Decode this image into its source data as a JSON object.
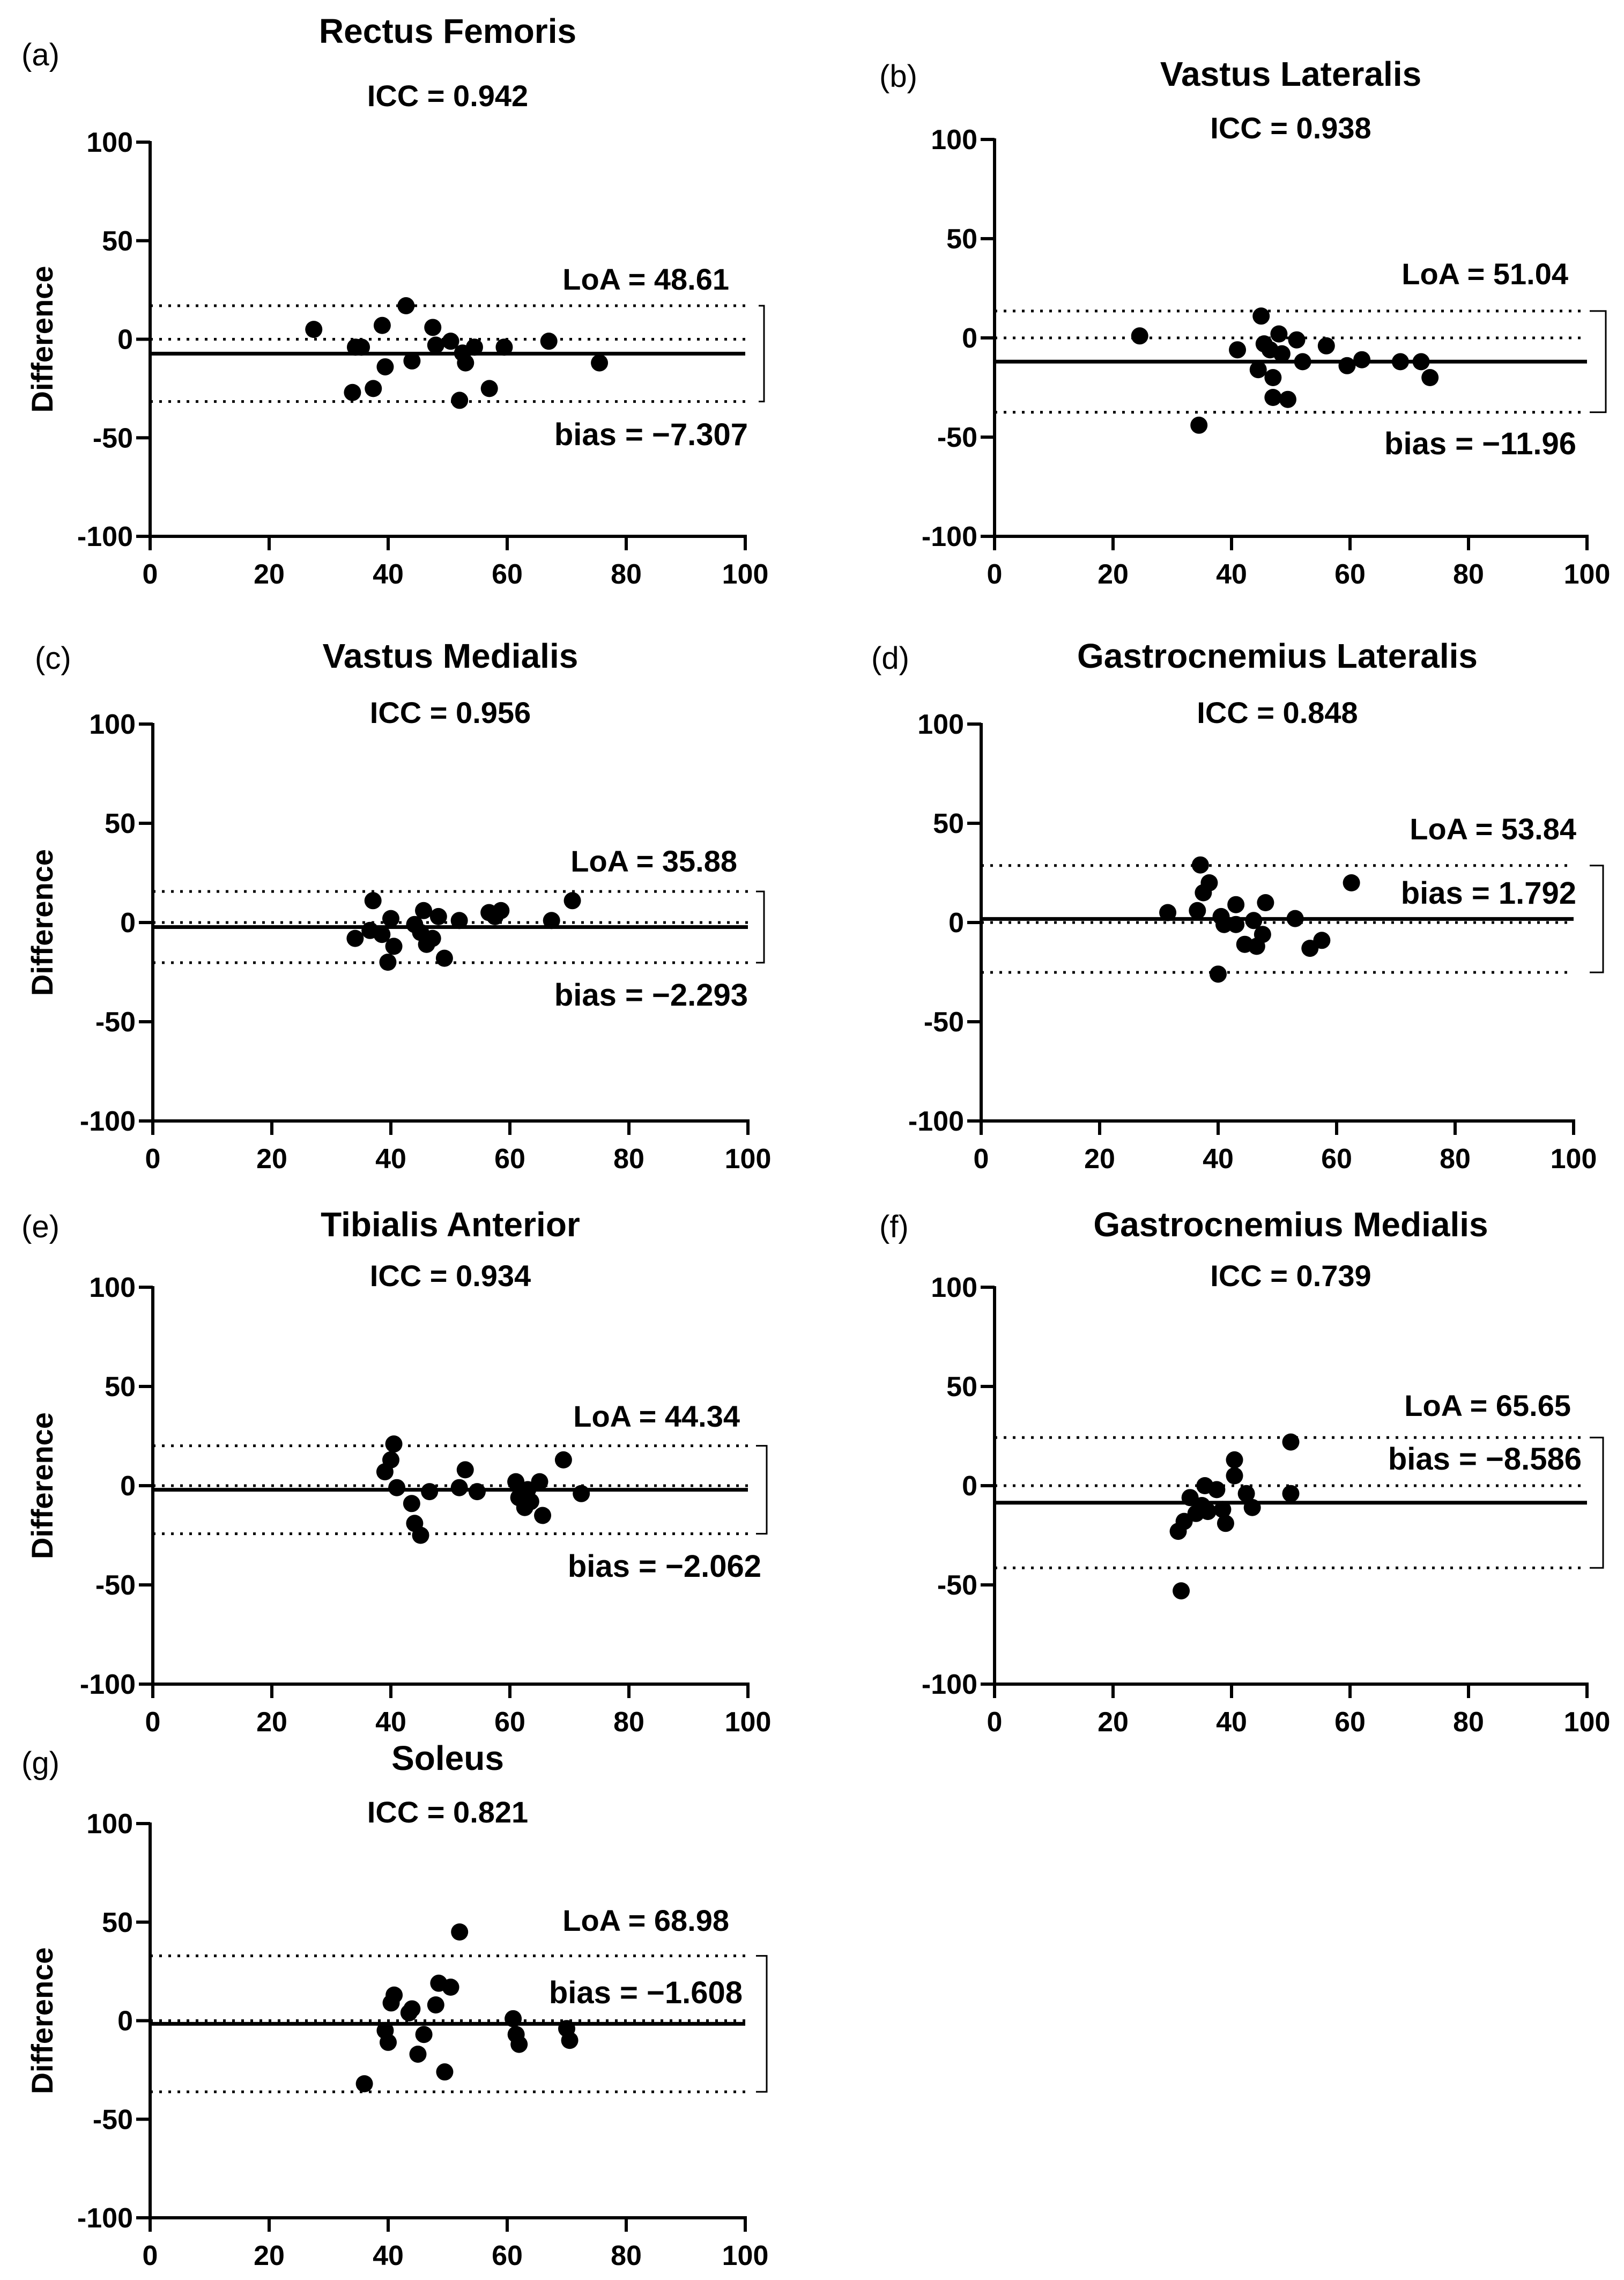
{
  "figure": {
    "axis_ylabel": "Difference",
    "x_ticks": [
      0,
      20,
      40,
      60,
      80,
      100
    ],
    "y_ticks": [
      -100,
      -50,
      0,
      50,
      100
    ],
    "zero_line": 0
  },
  "chart_data": [
    {
      "panel": "(a)",
      "type": "scatter",
      "title": "Rectus Femoris",
      "icc": "ICC = 0.942",
      "ylabel": "Difference",
      "xlim": [
        0,
        100
      ],
      "ylim": [
        -100,
        100
      ],
      "bias": -7.307,
      "upper_loa": 16.99,
      "lower_loa": -31.6,
      "loa_label": "LoA = 48.61",
      "bias_label": "bias = −7.307",
      "points": [
        [
          27.5,
          5
        ],
        [
          34,
          -27
        ],
        [
          34.5,
          -4
        ],
        [
          35.5,
          -4
        ],
        [
          37.5,
          -25
        ],
        [
          39,
          7
        ],
        [
          39.5,
          -14
        ],
        [
          43,
          17
        ],
        [
          44,
          -11
        ],
        [
          47.5,
          6
        ],
        [
          48,
          -3
        ],
        [
          50.5,
          -1
        ],
        [
          52,
          -31
        ],
        [
          52.5,
          -7
        ],
        [
          53,
          -12
        ],
        [
          54.5,
          -4
        ],
        [
          57,
          -25
        ],
        [
          59.5,
          -4
        ],
        [
          67,
          -1
        ],
        [
          75.5,
          -12
        ]
      ]
    },
    {
      "panel": "(b)",
      "type": "scatter",
      "title": "Vastus Lateralis",
      "icc": "ICC = 0.938",
      "ylabel": "",
      "xlim": [
        0,
        100
      ],
      "ylim": [
        -100,
        100
      ],
      "bias": -11.96,
      "upper_loa": 13.56,
      "lower_loa": -37.48,
      "loa_label": "LoA = 51.04",
      "bias_label": "bias = −11.96",
      "points": [
        [
          24.5,
          1
        ],
        [
          34.5,
          -44
        ],
        [
          41,
          -6
        ],
        [
          44.5,
          -16
        ],
        [
          45,
          11
        ],
        [
          45.5,
          -3
        ],
        [
          46.5,
          -6
        ],
        [
          47,
          -20
        ],
        [
          47,
          -30
        ],
        [
          48,
          2
        ],
        [
          48.5,
          -8
        ],
        [
          49.5,
          -31
        ],
        [
          51,
          -1
        ],
        [
          52,
          -12
        ],
        [
          56,
          -4
        ],
        [
          59.5,
          -14
        ],
        [
          62,
          -11
        ],
        [
          68.5,
          -12
        ],
        [
          72,
          -12
        ],
        [
          73.5,
          -20
        ]
      ]
    },
    {
      "panel": "(c)",
      "type": "scatter",
      "title": "Vastus Medialis",
      "icc": "ICC = 0.956",
      "ylabel": "Difference",
      "xlim": [
        0,
        100
      ],
      "ylim": [
        -100,
        100
      ],
      "bias": -2.293,
      "upper_loa": 15.65,
      "lower_loa": -20.23,
      "loa_label": "LoA = 35.88",
      "bias_label": "bias = −2.293",
      "points": [
        [
          34,
          -8
        ],
        [
          36.5,
          -4
        ],
        [
          37,
          11
        ],
        [
          38.5,
          -6
        ],
        [
          39.5,
          -20
        ],
        [
          40,
          2
        ],
        [
          40.5,
          -12
        ],
        [
          44,
          -1
        ],
        [
          45,
          -5
        ],
        [
          45.5,
          6
        ],
        [
          46,
          -11
        ],
        [
          47,
          -8
        ],
        [
          48,
          3
        ],
        [
          49,
          -18
        ],
        [
          51.5,
          1
        ],
        [
          56.5,
          5
        ],
        [
          57.5,
          3
        ],
        [
          58.5,
          6
        ],
        [
          67,
          1
        ],
        [
          70.5,
          11
        ]
      ]
    },
    {
      "panel": "(d)",
      "type": "scatter",
      "title": "Gastrocnemius Lateralis",
      "icc": "ICC = 0.848",
      "ylabel": "",
      "xlim": [
        0,
        100
      ],
      "ylim": [
        -100,
        100
      ],
      "bias": 1.792,
      "upper_loa": 28.71,
      "lower_loa": -25.13,
      "loa_label": "LoA = 53.84",
      "bias_label": "bias = 1.792",
      "points": [
        [
          31.5,
          5
        ],
        [
          36.5,
          6
        ],
        [
          37,
          29
        ],
        [
          37.5,
          15
        ],
        [
          38.5,
          20
        ],
        [
          40,
          -26
        ],
        [
          40.5,
          3
        ],
        [
          41,
          -1
        ],
        [
          43,
          9
        ],
        [
          43,
          -1
        ],
        [
          44.5,
          -11
        ],
        [
          46,
          1
        ],
        [
          46.5,
          -12
        ],
        [
          47.5,
          -6
        ],
        [
          48,
          10
        ],
        [
          53,
          2
        ],
        [
          55.5,
          -13
        ],
        [
          57.5,
          -9
        ],
        [
          62.5,
          20
        ]
      ]
    },
    {
      "panel": "(e)",
      "type": "scatter",
      "title": "Tibialis Anterior",
      "icc": "ICC = 0.934",
      "ylabel": "Difference",
      "xlim": [
        0,
        100
      ],
      "ylim": [
        -100,
        100
      ],
      "bias": -2.062,
      "upper_loa": 20.11,
      "lower_loa": -24.23,
      "loa_label": "LoA = 44.34",
      "bias_label": "bias = −2.062",
      "points": [
        [
          39,
          7
        ],
        [
          40,
          13
        ],
        [
          40.5,
          21
        ],
        [
          41,
          -1
        ],
        [
          43.5,
          -9
        ],
        [
          44,
          -19
        ],
        [
          45,
          -25
        ],
        [
          46.5,
          -3
        ],
        [
          51.5,
          -1
        ],
        [
          52.5,
          8
        ],
        [
          54.5,
          -3
        ],
        [
          61,
          2
        ],
        [
          61.5,
          -6
        ],
        [
          62.5,
          -11
        ],
        [
          63,
          -2
        ],
        [
          63.5,
          -8
        ],
        [
          65,
          2
        ],
        [
          65.5,
          -15
        ],
        [
          69,
          13
        ],
        [
          72,
          -4
        ]
      ]
    },
    {
      "panel": "(f)",
      "type": "scatter",
      "title": "Gastrocnemius Medialis",
      "icc": "ICC = 0.739",
      "ylabel": "",
      "xlim": [
        0,
        100
      ],
      "ylim": [
        -100,
        100
      ],
      "bias": -8.586,
      "upper_loa": 24.24,
      "lower_loa": -41.41,
      "loa_label": "LoA = 65.65",
      "bias_label": "bias = −8.586",
      "points": [
        [
          31,
          -23
        ],
        [
          31.5,
          -53
        ],
        [
          32,
          -18
        ],
        [
          33,
          -6
        ],
        [
          34,
          -14
        ],
        [
          35,
          -10
        ],
        [
          35.5,
          0
        ],
        [
          36,
          -13
        ],
        [
          37.5,
          -2
        ],
        [
          38.5,
          -12
        ],
        [
          39,
          -19
        ],
        [
          40.5,
          13
        ],
        [
          40.5,
          5
        ],
        [
          42.5,
          -4
        ],
        [
          43.5,
          -11
        ],
        [
          50,
          22
        ],
        [
          50,
          -4
        ]
      ]
    },
    {
      "panel": "(g)",
      "type": "scatter",
      "title": "Soleus",
      "icc": "ICC = 0.821",
      "ylabel": "Difference",
      "xlim": [
        0,
        100
      ],
      "ylim": [
        -100,
        100
      ],
      "bias": -1.608,
      "upper_loa": 32.88,
      "lower_loa": -36.1,
      "loa_label": "LoA = 68.98",
      "bias_label": "bias = −1.608",
      "points": [
        [
          36,
          -32
        ],
        [
          39.5,
          -5
        ],
        [
          40,
          -11
        ],
        [
          40.5,
          9
        ],
        [
          41,
          13
        ],
        [
          43.5,
          4
        ],
        [
          44,
          6
        ],
        [
          45,
          -17
        ],
        [
          46,
          -7
        ],
        [
          48,
          8
        ],
        [
          48.5,
          19
        ],
        [
          49.5,
          -26
        ],
        [
          50.5,
          17
        ],
        [
          52,
          45
        ],
        [
          61,
          1
        ],
        [
          61.5,
          -7
        ],
        [
          62,
          -12
        ],
        [
          70,
          -4
        ],
        [
          70.5,
          -10
        ]
      ]
    }
  ]
}
